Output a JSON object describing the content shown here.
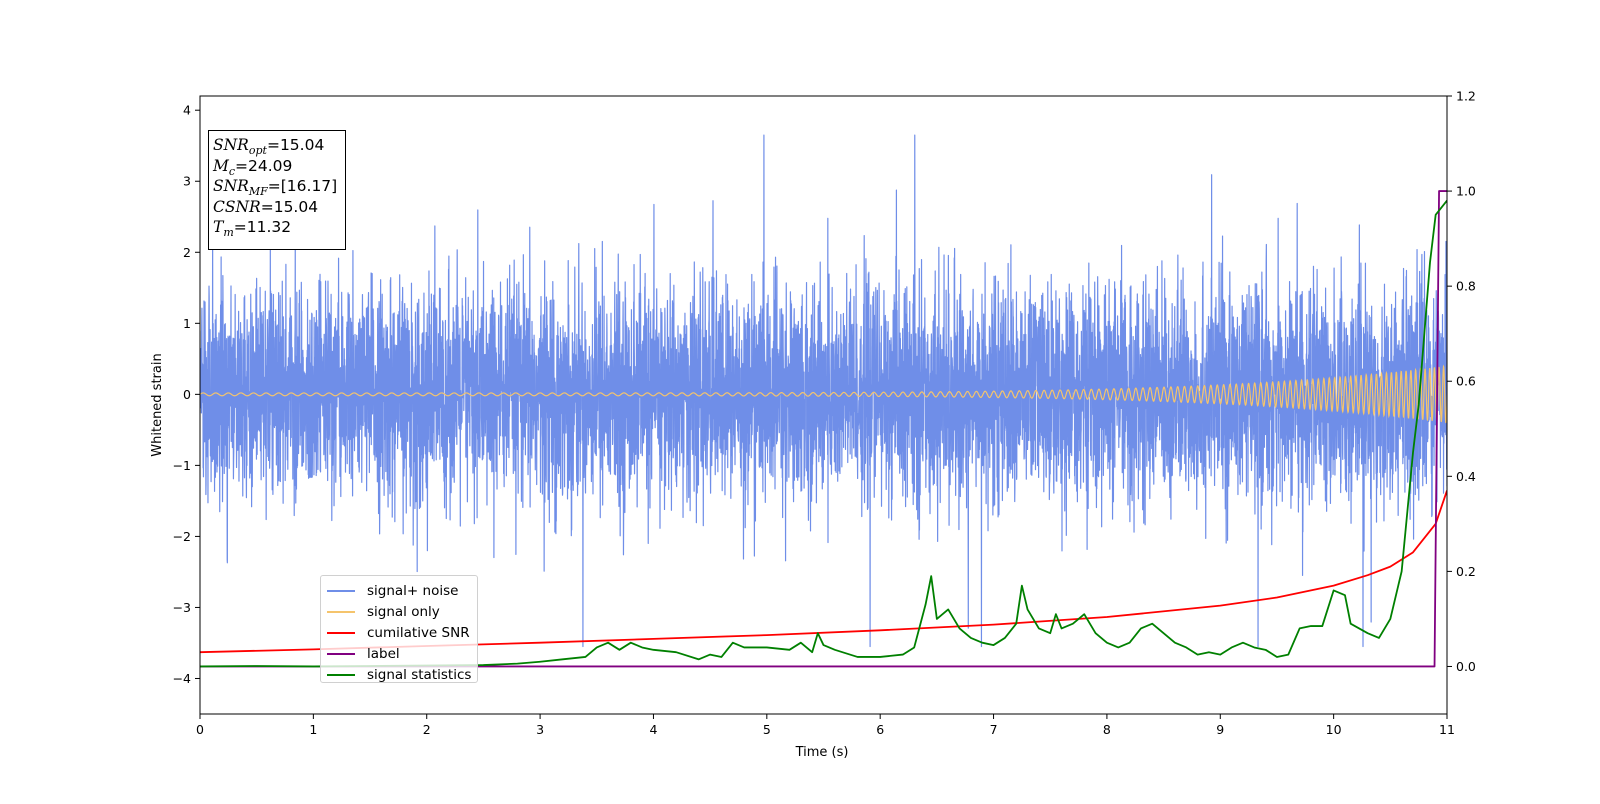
{
  "chart_data": {
    "type": "line",
    "xlabel": "Time (s)",
    "ylabel": "Whitened strain",
    "xlim": [
      0,
      11
    ],
    "ylim": [
      -4.5,
      4.2
    ],
    "y2lim": [
      -0.1,
      1.2
    ],
    "grid": false,
    "x_ticks": [
      "0",
      "1",
      "2",
      "3",
      "4",
      "5",
      "6",
      "7",
      "8",
      "9",
      "10",
      "11"
    ],
    "y_ticks": [
      "−4",
      "−3",
      "−2",
      "−1",
      "0",
      "1",
      "2",
      "3",
      "4"
    ],
    "y2_ticks": [
      "0.0",
      "0.2",
      "0.4",
      "0.6",
      "0.8",
      "1.0",
      "1.2"
    ],
    "infobox": {
      "snr_opt": {
        "sym": "SNR",
        "sub": "opt",
        "val": "=15.04"
      },
      "mc": {
        "sym": "M",
        "sub": "c",
        "val": "=24.09"
      },
      "snr_mf": {
        "sym": "SNR",
        "sub": "MF",
        "val": "=[16.17]"
      },
      "csnr": {
        "sym": "CSNR",
        "val": "=15.04"
      },
      "tm": {
        "sym": "T",
        "sub": "m",
        "val": "=11.32"
      }
    },
    "legend_position": "lower-left",
    "series": [
      {
        "name": "signal+ noise",
        "color": "#6f8ee8",
        "axis": "left",
        "noise_std": 0.75,
        "duration": 11
      },
      {
        "name": "signal only",
        "color": "#f5c46c",
        "axis": "left",
        "amplitude_start": 0.02,
        "amplitude_end": 0.4
      },
      {
        "name": "cumilative SNR",
        "color": "#ff0000",
        "axis": "right",
        "x": [
          0,
          1,
          2,
          3,
          4,
          5,
          6,
          7,
          8,
          9,
          9.5,
          10,
          10.3,
          10.5,
          10.7,
          10.9,
          11
        ],
        "y": [
          0.03,
          0.036,
          0.043,
          0.05,
          0.058,
          0.066,
          0.076,
          0.088,
          0.104,
          0.128,
          0.145,
          0.17,
          0.192,
          0.21,
          0.24,
          0.3,
          0.37
        ]
      },
      {
        "name": "label",
        "color": "#800080",
        "axis": "right",
        "x": [
          0,
          10.89,
          10.93,
          11
        ],
        "y": [
          0,
          0,
          1.0,
          1.0
        ]
      },
      {
        "name": "signal statistics",
        "color": "#008000",
        "axis": "right",
        "x": [
          0,
          0.5,
          1,
          1.5,
          2,
          2.5,
          2.8,
          3,
          3.2,
          3.4,
          3.5,
          3.6,
          3.7,
          3.8,
          3.9,
          4.0,
          4.2,
          4.4,
          4.5,
          4.6,
          4.7,
          4.8,
          5.0,
          5.2,
          5.3,
          5.4,
          5.45,
          5.5,
          5.6,
          5.8,
          6.0,
          6.2,
          6.3,
          6.4,
          6.45,
          6.5,
          6.6,
          6.7,
          6.8,
          6.9,
          7.0,
          7.1,
          7.2,
          7.25,
          7.3,
          7.4,
          7.5,
          7.55,
          7.6,
          7.7,
          7.8,
          7.9,
          8.0,
          8.1,
          8.2,
          8.3,
          8.4,
          8.5,
          8.6,
          8.7,
          8.8,
          8.9,
          9.0,
          9.1,
          9.2,
          9.3,
          9.4,
          9.5,
          9.6,
          9.7,
          9.8,
          9.9,
          10.0,
          10.1,
          10.15,
          10.3,
          10.4,
          10.5,
          10.6,
          10.7,
          10.75,
          10.8,
          10.85,
          10.9,
          11.0
        ],
        "y": [
          0.0,
          0.001,
          0.0,
          0.001,
          0.002,
          0.003,
          0.006,
          0.01,
          0.015,
          0.02,
          0.04,
          0.05,
          0.035,
          0.05,
          0.04,
          0.035,
          0.03,
          0.015,
          0.025,
          0.02,
          0.05,
          0.04,
          0.04,
          0.035,
          0.05,
          0.03,
          0.07,
          0.045,
          0.035,
          0.02,
          0.02,
          0.025,
          0.04,
          0.13,
          0.19,
          0.1,
          0.12,
          0.08,
          0.06,
          0.05,
          0.045,
          0.06,
          0.09,
          0.17,
          0.12,
          0.08,
          0.07,
          0.11,
          0.08,
          0.09,
          0.11,
          0.07,
          0.05,
          0.04,
          0.05,
          0.08,
          0.09,
          0.07,
          0.05,
          0.04,
          0.025,
          0.03,
          0.025,
          0.04,
          0.05,
          0.04,
          0.035,
          0.02,
          0.025,
          0.08,
          0.085,
          0.085,
          0.16,
          0.15,
          0.09,
          0.07,
          0.06,
          0.1,
          0.2,
          0.45,
          0.55,
          0.7,
          0.85,
          0.95,
          0.98
        ]
      }
    ]
  }
}
